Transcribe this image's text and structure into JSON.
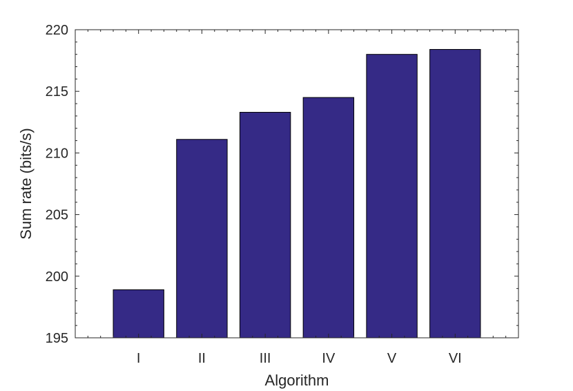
{
  "chart_data": {
    "type": "bar",
    "categories": [
      "I",
      "II",
      "III",
      "IV",
      "V",
      "VI"
    ],
    "values": [
      198.9,
      211.1,
      213.3,
      214.5,
      218.0,
      218.4
    ],
    "xlabel": "Algorithm",
    "ylabel": "Sum rate (bits/s)",
    "ylim": [
      195,
      220
    ],
    "yticks": [
      195,
      200,
      205,
      210,
      215,
      220
    ],
    "grid": false,
    "bar_color": "#352a86",
    "edge_color": "#000000"
  }
}
